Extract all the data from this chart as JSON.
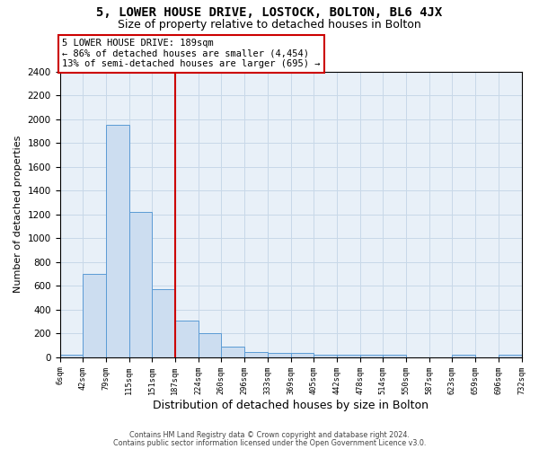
{
  "title1": "5, LOWER HOUSE DRIVE, LOSTOCK, BOLTON, BL6 4JX",
  "title2": "Size of property relative to detached houses in Bolton",
  "xlabel": "Distribution of detached houses by size in Bolton",
  "ylabel": "Number of detached properties",
  "footnote1": "Contains HM Land Registry data © Crown copyright and database right 2024.",
  "footnote2": "Contains public sector information licensed under the Open Government Licence v3.0.",
  "bar_edges": [
    6,
    42,
    79,
    115,
    151,
    187,
    224,
    260,
    296,
    333,
    369,
    405,
    442,
    478,
    514,
    550,
    587,
    623,
    659,
    696,
    732
  ],
  "bar_heights": [
    20,
    700,
    1950,
    1220,
    570,
    310,
    205,
    85,
    45,
    35,
    35,
    20,
    20,
    20,
    20,
    0,
    0,
    20,
    0,
    20
  ],
  "bar_color": "#ccddf0",
  "bar_edge_color": "#5b9bd5",
  "vline_x": 187,
  "vline_color": "#cc0000",
  "annotation_text": "5 LOWER HOUSE DRIVE: 189sqm\n← 86% of detached houses are smaller (4,454)\n13% of semi-detached houses are larger (695) →",
  "annotation_box_color": "#cc0000",
  "annotation_text_color": "#000000",
  "ylim": [
    0,
    2400
  ],
  "yticks": [
    0,
    200,
    400,
    600,
    800,
    1000,
    1200,
    1400,
    1600,
    1800,
    2000,
    2200,
    2400
  ],
  "bg_color": "#ffffff",
  "grid_color": "#c8d8e8",
  "ax_bg_color": "#e8f0f8",
  "title1_fontsize": 10,
  "title2_fontsize": 9,
  "annotation_fontsize": 7.5
}
